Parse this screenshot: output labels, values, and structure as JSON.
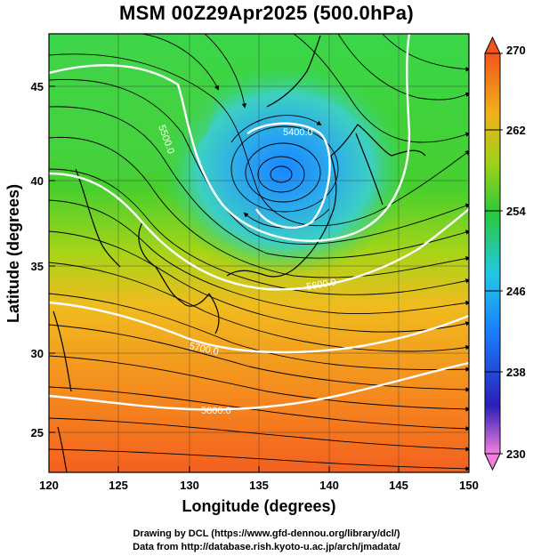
{
  "title": "MSM 00Z29Apr2025 (500.0hPa)",
  "xlabel": "Longitude (degrees)",
  "ylabel": "Latitude  (degrees)",
  "x_ticks": [
    "120",
    "125",
    "130",
    "135",
    "140",
    "145",
    "150"
  ],
  "y_ticks": [
    "45",
    "40",
    "35",
    "30",
    "25"
  ],
  "colorbar": {
    "min": 230,
    "max": 270,
    "labels": [
      "270",
      "262",
      "254",
      "246",
      "238",
      "230"
    ],
    "colors": [
      "#f57fe0",
      "#2a1fb5",
      "#1a7bff",
      "#22c8e6",
      "#2ac83a",
      "#9ad21a",
      "#f0b21a",
      "#f2551c"
    ]
  },
  "contour_labels": [
    "5400.0",
    "5500.0",
    "5600.0",
    "5700.0",
    "5800.0"
  ],
  "credits": [
    "Drawing by DCL (https://www.gfd-dennou.org/library/dcl/)",
    "Data from http://database.rish.kyoto-u.ac.jp/arch/jmadata/"
  ]
}
